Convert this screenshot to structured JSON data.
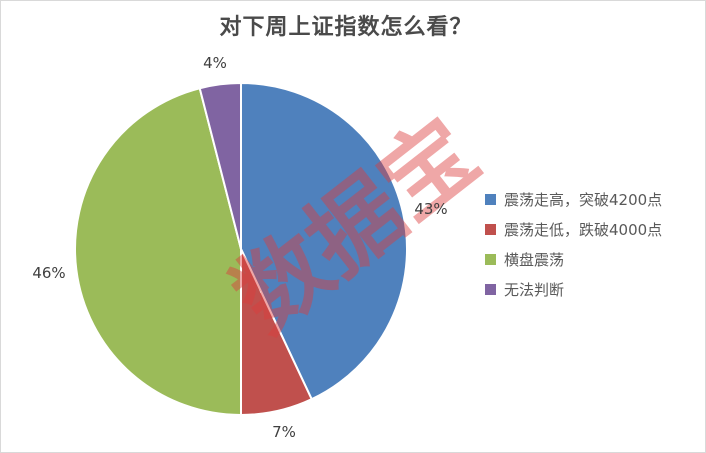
{
  "frame": {
    "background": "#FFFFFF",
    "border_color": "#D9D9D9"
  },
  "chart_data": {
    "type": "pie",
    "title": "对下周上证指数怎么看？",
    "legend_position": "right",
    "start_angle_deg": 0,
    "direction": "clockwise",
    "slices": [
      {
        "label": "震荡走高，突破4200点",
        "value": 43,
        "pct_label": "43%",
        "color": "#4F81BD"
      },
      {
        "label": "震荡走低，跌破4000点",
        "value": 7,
        "pct_label": "7%",
        "color": "#C0504D"
      },
      {
        "label": "横盘震荡",
        "value": 46,
        "pct_label": "46%",
        "color": "#9BBB59"
      },
      {
        "label": "无法判断",
        "value": 4,
        "pct_label": "4%",
        "color": "#8064A2"
      }
    ],
    "slice_separator_color": "#FFFFFF",
    "label_color": "#3F3F3F",
    "legend_text_color": "#595959",
    "title_color": "#4A4A4A",
    "watermark": "数据宝",
    "watermark_color": "rgba(219,60,60,0.45)"
  }
}
